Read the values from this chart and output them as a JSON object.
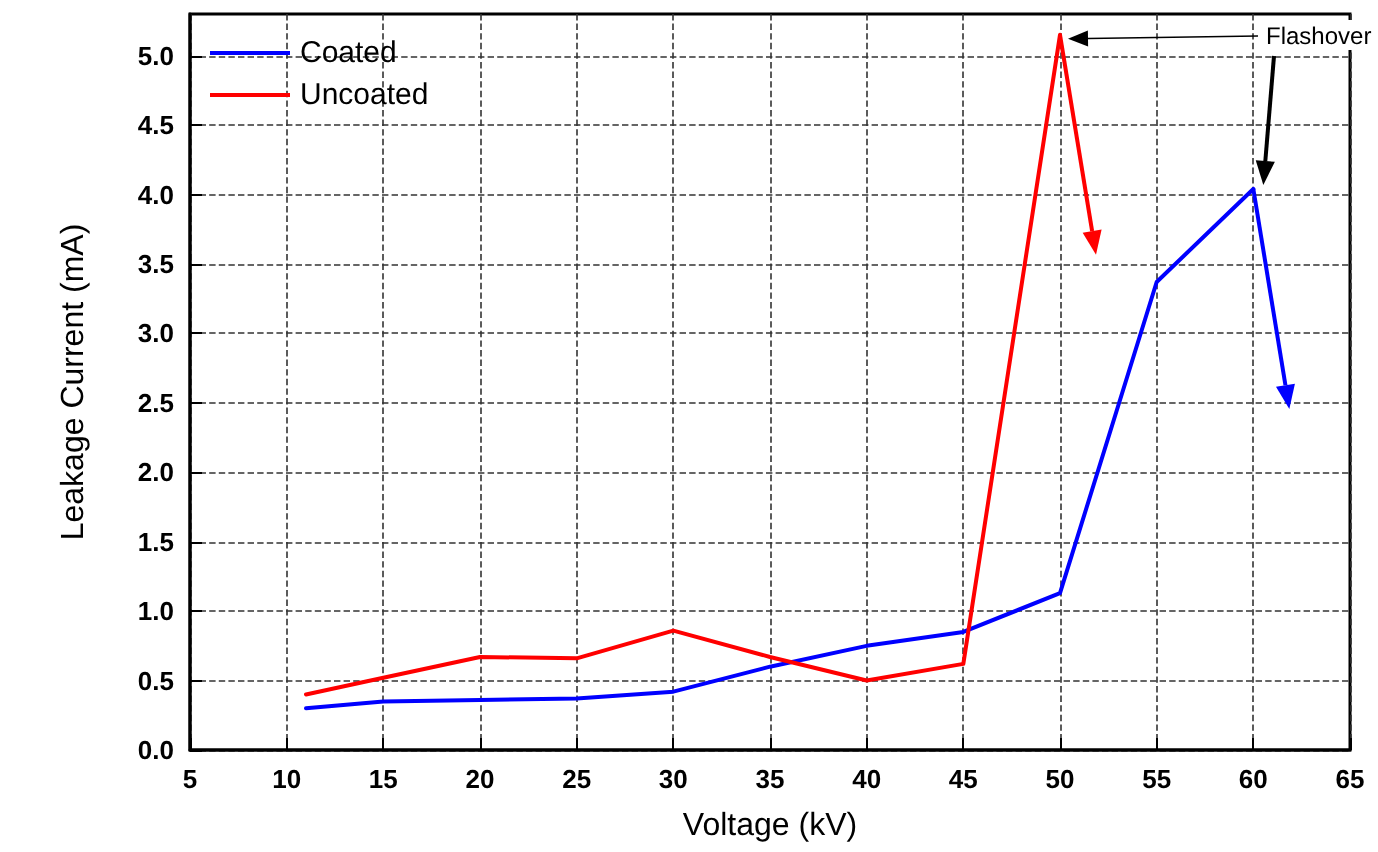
{
  "chart_data": {
    "type": "line",
    "xlabel": "Voltage (kV)",
    "ylabel": "Leakage Current (mA)",
    "xlim": [
      5,
      65
    ],
    "xticks": [
      5,
      10,
      15,
      20,
      25,
      30,
      35,
      40,
      45,
      50,
      55,
      60,
      65
    ],
    "ylim": [
      0,
      5.3
    ],
    "yticks": [
      {
        "value": 0,
        "label": "0.0"
      },
      0.5,
      {
        "value": 1,
        "label": "1.0"
      },
      1.5,
      {
        "value": 2,
        "label": "2.0"
      },
      2.5,
      {
        "value": 3,
        "label": "3.0"
      },
      3.5,
      {
        "value": 4,
        "label": "4.0"
      },
      4.5,
      {
        "value": 5,
        "label": "5.0"
      }
    ],
    "series": [
      {
        "name": "Coated",
        "color": "#0000ff",
        "x": [
          11,
          15,
          20,
          25,
          30,
          35,
          40,
          45,
          50,
          55,
          60
        ],
        "values": [
          0.3,
          0.35,
          0.36,
          0.37,
          0.42,
          0.6,
          0.75,
          0.85,
          1.13,
          3.37,
          4.04
        ]
      },
      {
        "name": "Uncoated",
        "color": "#ff0000",
        "x": [
          11,
          15,
          20,
          25,
          30,
          35,
          40,
          45,
          50
        ],
        "values": [
          0.4,
          0.52,
          0.67,
          0.66,
          0.86,
          0.67,
          0.5,
          0.62,
          5.15
        ]
      }
    ],
    "annotations": [
      "Flashover"
    ],
    "grid": true,
    "legend": "top left",
    "marker": "none",
    "line_style": "solid"
  }
}
